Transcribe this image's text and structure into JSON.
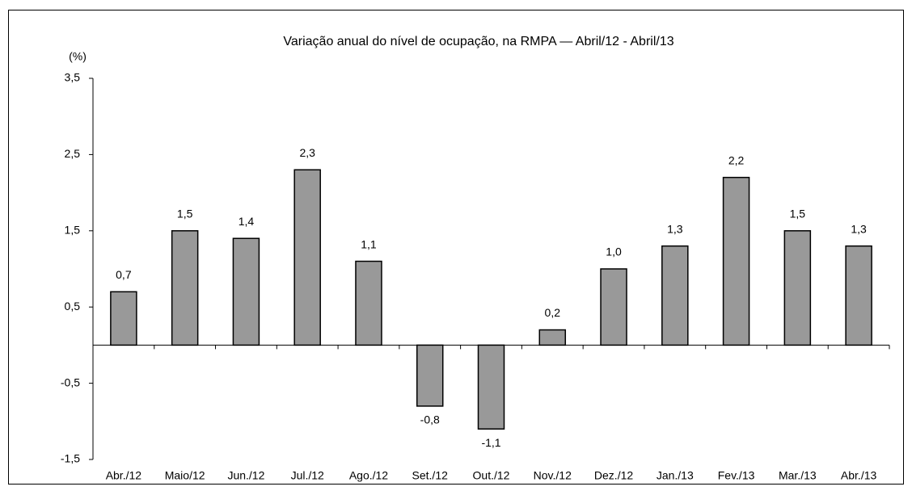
{
  "chart_data": {
    "type": "bar",
    "title": "Variação anual do nível de ocupação, na RMPA — Abril/12 - Abril/13",
    "y_label": "(%)",
    "categories": [
      "Abr./12",
      "Maio/12",
      "Jun./12",
      "Jul./12",
      "Ago./12",
      "Set./12",
      "Out./12",
      "Nov./12",
      "Dez./12",
      "Jan./13",
      "Fev./13",
      "Mar./13",
      "Abr./13"
    ],
    "values": [
      0.7,
      1.5,
      1.4,
      2.3,
      1.1,
      -0.8,
      -1.1,
      0.2,
      1.0,
      1.3,
      2.2,
      1.5,
      1.3
    ],
    "value_labels": [
      "0,7",
      "1,5",
      "1,4",
      "2,3",
      "1,1",
      "-0,8",
      "-1,1",
      "0,2",
      "1,0",
      "1,3",
      "2,2",
      "1,5",
      "1,3"
    ],
    "color": "#999999",
    "ylim": [
      -1.5,
      3.5
    ],
    "yticks": [
      {
        "value": -1.5,
        "label": "-1,5"
      },
      {
        "value": -0.5,
        "label": "-0,5"
      },
      {
        "value": 0.5,
        "label": "0,5"
      },
      {
        "value": 1.5,
        "label": "1,5"
      },
      {
        "value": 2.5,
        "label": "2,5"
      },
      {
        "value": 3.5,
        "label": "3,5"
      }
    ],
    "grid": false
  }
}
